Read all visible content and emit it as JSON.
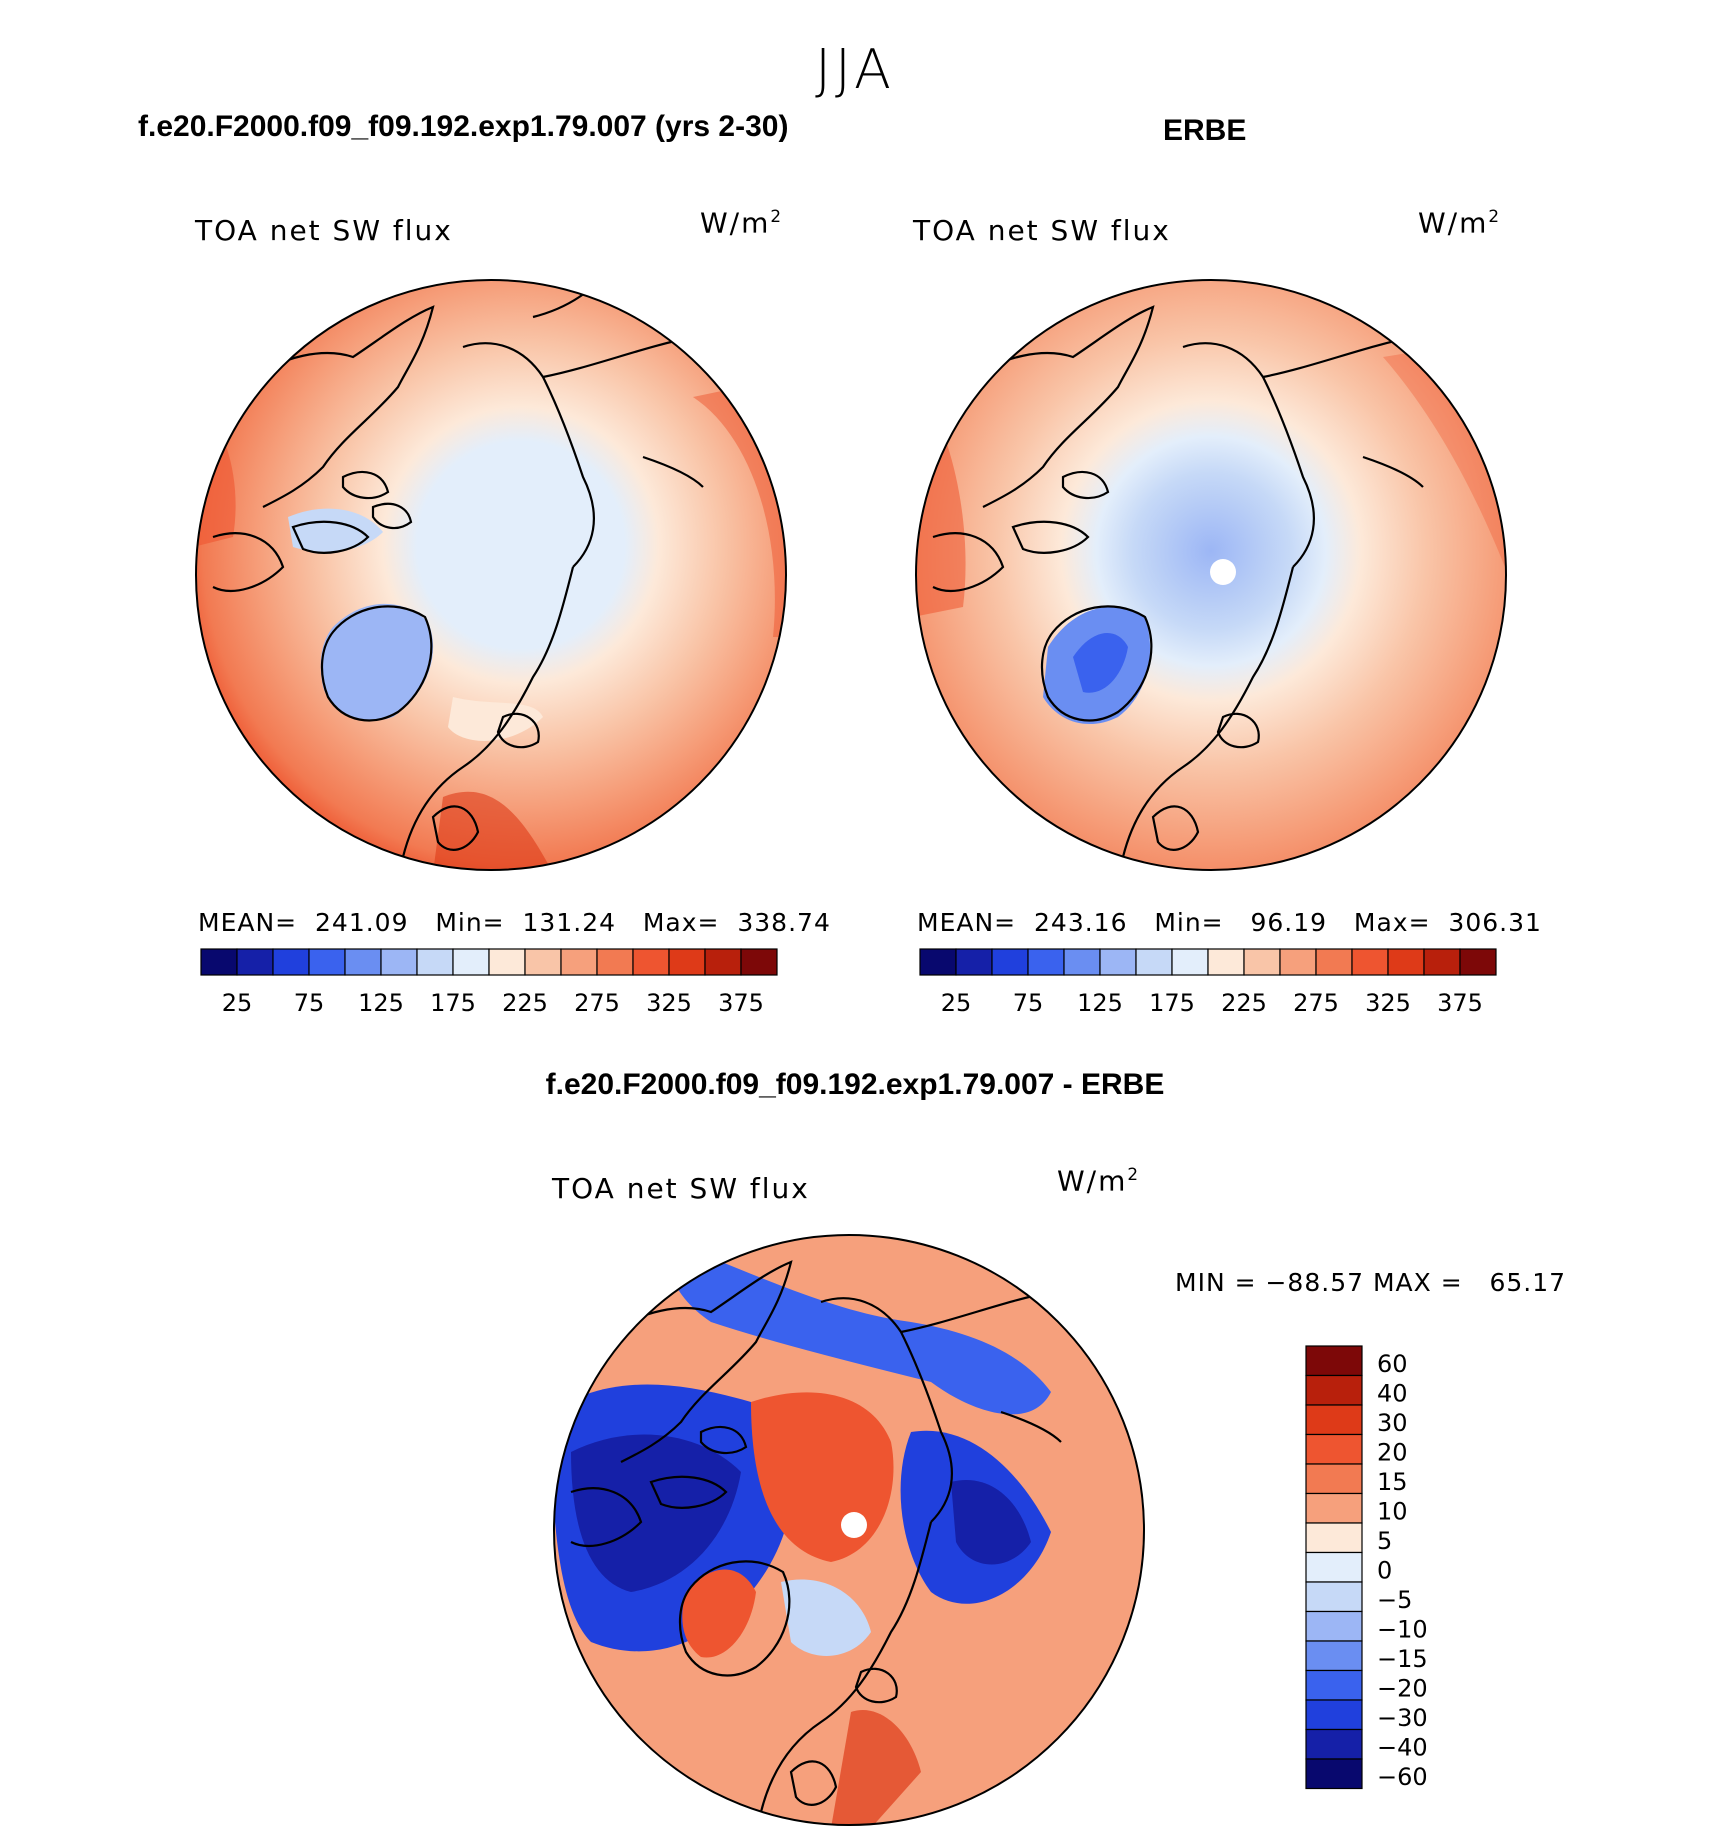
{
  "page": {
    "season": "JJA",
    "bottom_title": "f.e20.F2000.f09_f09.192.exp1.79.007 - ERBE"
  },
  "panels": [
    {
      "id": "model",
      "title": "f.e20.F2000.f09_f09.192.exp1.79.007 (yrs 2-30)",
      "variable": "TOA net SW flux",
      "units": "W/m",
      "units_sup": "2",
      "stats": "MEAN=  241.09   Min=  131.24   Max=  338.74"
    },
    {
      "id": "obs",
      "title": "ERBE",
      "variable": "TOA net SW flux",
      "units": "W/m",
      "units_sup": "2",
      "stats": "MEAN=  243.16   Min=   96.19   Max=  306.31"
    },
    {
      "id": "diff",
      "variable": "TOA net SW flux",
      "units": "W/m",
      "units_sup": "2",
      "stats": "MIN = −88.57 MAX =   65.17"
    }
  ],
  "colorbar_abs": {
    "colors": [
      "#08086e",
      "#1520a8",
      "#2040dd",
      "#3a62ee",
      "#6a8ef2",
      "#9cb6f5",
      "#c6d9f7",
      "#e3eefb",
      "#fde9d9",
      "#f9c5a8",
      "#f6a07c",
      "#f27a52",
      "#ee5530",
      "#de3a18",
      "#b8200c",
      "#7d0808"
    ],
    "labels": [
      "25",
      "75",
      "125",
      "175",
      "225",
      "275",
      "325",
      "375"
    ]
  },
  "colorbar_diff": {
    "colors": [
      "#7d0808",
      "#b8200c",
      "#de3a18",
      "#ee5530",
      "#f27a52",
      "#f6a07c",
      "#fde9d9",
      "#e3eefb",
      "#c6d9f7",
      "#9cb6f5",
      "#6a8ef2",
      "#3a62ee",
      "#2040dd",
      "#1520a8",
      "#08086e"
    ],
    "labels": [
      "60",
      "40",
      "30",
      "20",
      "15",
      "10",
      "5",
      "0",
      "−5",
      "−10",
      "−15",
      "−20",
      "−30",
      "−40",
      "−60"
    ]
  }
}
